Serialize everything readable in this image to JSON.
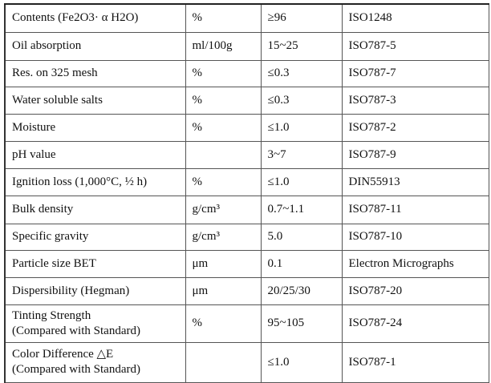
{
  "table": {
    "rows": [
      [
        [
          "Contents (Fe2O3· α H2O)"
        ],
        "%",
        "≥96",
        "ISO1248"
      ],
      [
        [
          "Oil absorption"
        ],
        "ml/100g",
        "15~25",
        "ISO787-5"
      ],
      [
        [
          "Res. on 325 mesh"
        ],
        "%",
        "≤0.3",
        "ISO787-7"
      ],
      [
        [
          "Water soluble salts"
        ],
        "%",
        "≤0.3",
        "ISO787-3"
      ],
      [
        [
          "Moisture"
        ],
        "%",
        "≤1.0",
        "ISO787-2"
      ],
      [
        [
          "pH value"
        ],
        null,
        "3~7",
        "ISO787-9"
      ],
      [
        [
          "Ignition loss (1,000°C, ½ h)"
        ],
        "%",
        "≤1.0",
        "DIN55913"
      ],
      [
        [
          "Bulk density"
        ],
        "g/cm³",
        "0.7~1.1",
        "ISO787-11"
      ],
      [
        [
          "Specific gravity"
        ],
        "g/cm³",
        "5.0",
        "ISO787-10"
      ],
      [
        [
          "Particle size BET"
        ],
        "μm",
        "0.1",
        "Electron Micrographs"
      ],
      [
        [
          "Dispersibility (Hegman)"
        ],
        "μm",
        "20/25/30",
        "ISO787-20"
      ],
      [
        [
          "Tinting Strength",
          "(Compared with Standard)"
        ],
        "%",
        "95~105",
        "ISO787-24"
      ],
      [
        [
          "Color Difference △E",
          "(Compared with Standard)"
        ],
        null,
        "≤1.0",
        "ISO787-1"
      ]
    ]
  }
}
